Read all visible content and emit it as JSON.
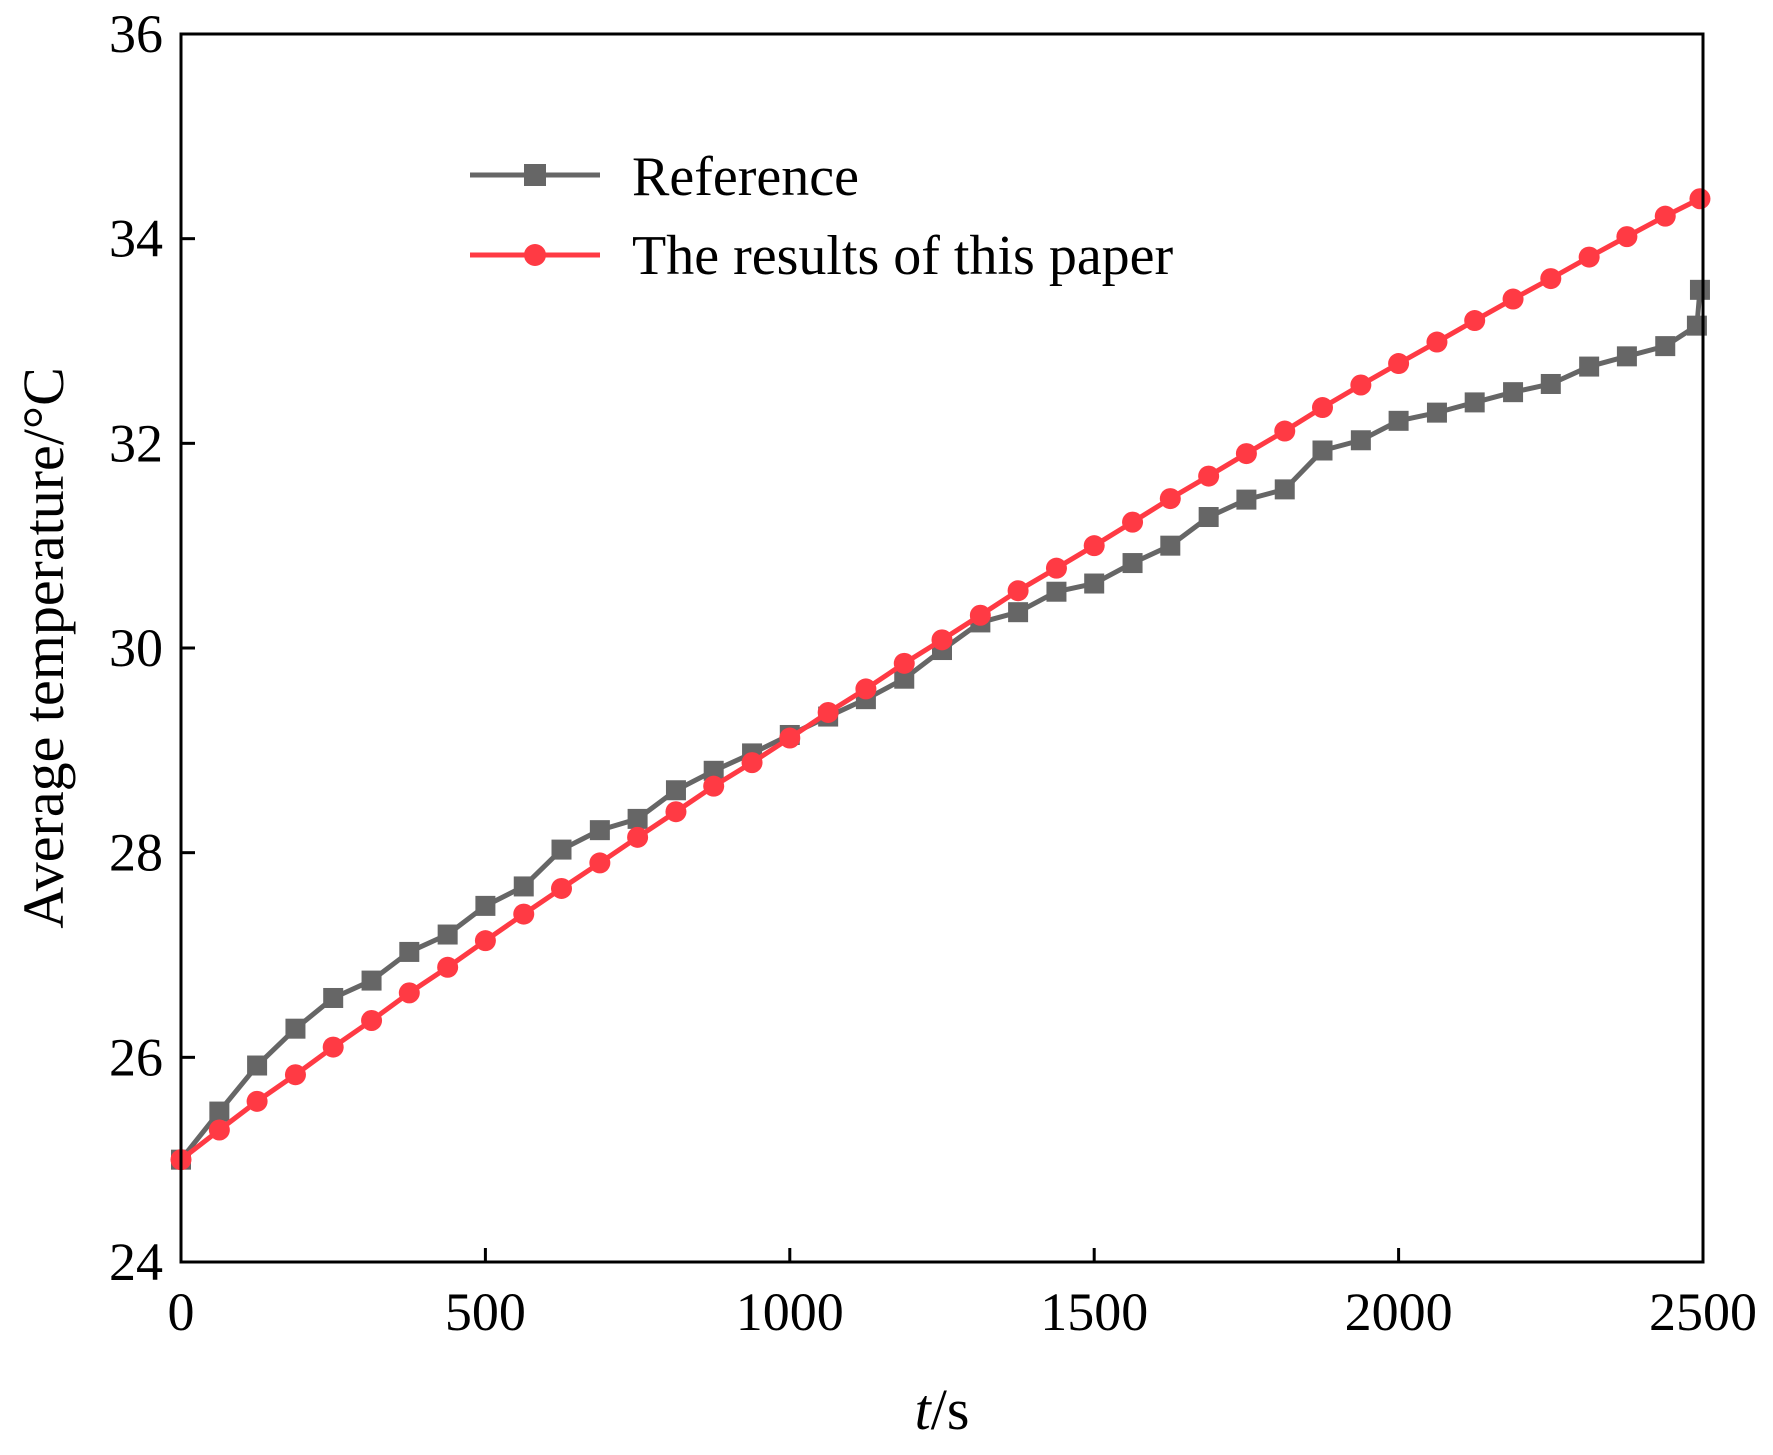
{
  "chart_data": {
    "type": "line",
    "title": "",
    "xlabel_italic": "t",
    "xlabel_rest": "/s",
    "ylabel": "Average temperature/°C",
    "xlim": [
      0,
      2500
    ],
    "ylim": [
      24,
      36
    ],
    "xticks": [
      0,
      500,
      1000,
      1500,
      2000,
      2500
    ],
    "yticks": [
      24,
      26,
      28,
      30,
      32,
      34,
      36
    ],
    "xtick_labels": [
      "0",
      "500",
      "1000",
      "1500",
      "2000",
      "2500"
    ],
    "ytick_labels": [
      "24",
      "26",
      "28",
      "30",
      "32",
      "34",
      "36"
    ],
    "grid": false,
    "legend_position": "top-left",
    "series": [
      {
        "name": "Reference",
        "color": "#666666",
        "marker": "square",
        "points": [
          [
            0,
            25.0
          ],
          [
            63,
            25.47
          ],
          [
            125,
            25.92
          ],
          [
            188,
            26.28
          ],
          [
            250,
            26.58
          ],
          [
            313,
            26.75
          ],
          [
            375,
            27.03
          ],
          [
            438,
            27.2
          ],
          [
            500,
            27.48
          ],
          [
            563,
            27.67
          ],
          [
            625,
            28.03
          ],
          [
            688,
            28.22
          ],
          [
            750,
            28.33
          ],
          [
            813,
            28.61
          ],
          [
            875,
            28.8
          ],
          [
            938,
            28.97
          ],
          [
            1000,
            29.15
          ],
          [
            1063,
            29.33
          ],
          [
            1125,
            29.5
          ],
          [
            1188,
            29.7
          ],
          [
            1250,
            29.98
          ],
          [
            1313,
            30.25
          ],
          [
            1375,
            30.35
          ],
          [
            1438,
            30.55
          ],
          [
            1500,
            30.63
          ],
          [
            1563,
            30.83
          ],
          [
            1625,
            31.0
          ],
          [
            1688,
            31.28
          ],
          [
            1750,
            31.45
          ],
          [
            1813,
            31.55
          ],
          [
            1875,
            31.93
          ],
          [
            1938,
            32.03
          ],
          [
            2000,
            32.22
          ],
          [
            2063,
            32.3
          ],
          [
            2125,
            32.4
          ],
          [
            2188,
            32.5
          ],
          [
            2250,
            32.58
          ],
          [
            2313,
            32.75
          ],
          [
            2375,
            32.85
          ],
          [
            2438,
            32.95
          ],
          [
            2490,
            33.15
          ],
          [
            2495,
            33.5
          ]
        ]
      },
      {
        "name": "The results of this paper",
        "color": "#ff3a44",
        "marker": "circle",
        "points": [
          [
            0,
            25.0
          ],
          [
            63,
            25.29
          ],
          [
            125,
            25.57
          ],
          [
            188,
            25.83
          ],
          [
            250,
            26.1
          ],
          [
            313,
            26.36
          ],
          [
            375,
            26.63
          ],
          [
            438,
            26.88
          ],
          [
            500,
            27.14
          ],
          [
            563,
            27.4
          ],
          [
            625,
            27.65
          ],
          [
            688,
            27.9
          ],
          [
            750,
            28.15
          ],
          [
            813,
            28.4
          ],
          [
            875,
            28.65
          ],
          [
            938,
            28.88
          ],
          [
            1000,
            29.12
          ],
          [
            1063,
            29.37
          ],
          [
            1125,
            29.6
          ],
          [
            1188,
            29.85
          ],
          [
            1250,
            30.08
          ],
          [
            1313,
            30.32
          ],
          [
            1375,
            30.56
          ],
          [
            1438,
            30.78
          ],
          [
            1500,
            31.0
          ],
          [
            1563,
            31.23
          ],
          [
            1625,
            31.46
          ],
          [
            1688,
            31.68
          ],
          [
            1750,
            31.9
          ],
          [
            1813,
            32.12
          ],
          [
            1875,
            32.35
          ],
          [
            1938,
            32.57
          ],
          [
            2000,
            32.78
          ],
          [
            2063,
            32.99
          ],
          [
            2125,
            33.2
          ],
          [
            2188,
            33.41
          ],
          [
            2250,
            33.61
          ],
          [
            2313,
            33.82
          ],
          [
            2375,
            34.02
          ],
          [
            2438,
            34.22
          ],
          [
            2495,
            34.39
          ]
        ]
      }
    ]
  }
}
